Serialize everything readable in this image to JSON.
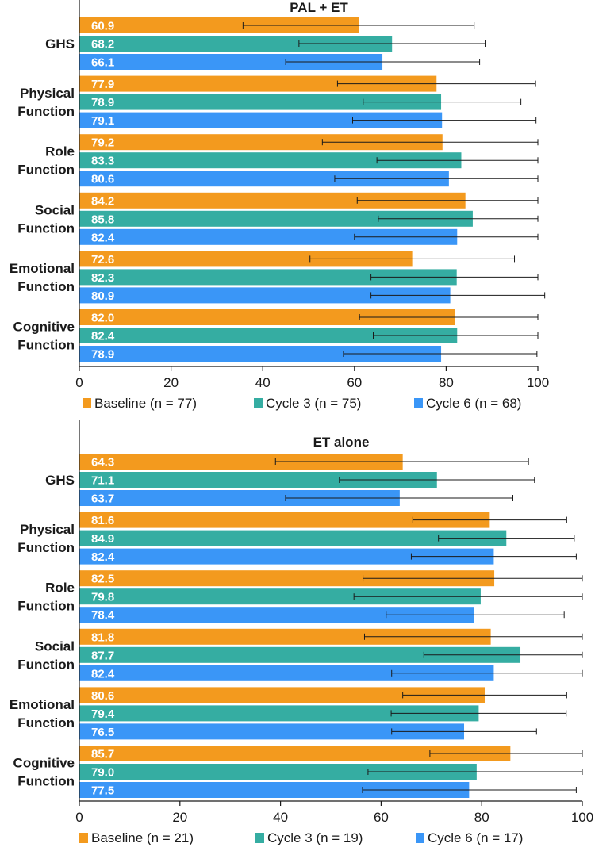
{
  "colors": {
    "baseline": "#F39A1E",
    "cycle3": "#35ADA2",
    "cycle6": "#3A96F7"
  },
  "chart_data": [
    {
      "type": "bar",
      "orientation": "horizontal",
      "title": "PAL + ET",
      "categories": [
        [
          "GHS"
        ],
        [
          "Physical",
          "Function"
        ],
        [
          "Role",
          "Function"
        ],
        [
          "Social",
          "Function"
        ],
        [
          "Emotional",
          "Function"
        ],
        [
          "Cognitive",
          "Function"
        ]
      ],
      "xlim": [
        0,
        100
      ],
      "xticks": [
        0,
        20,
        40,
        60,
        80,
        100
      ],
      "legend_position": "bottom",
      "series": [
        {
          "name": "Baseline (n = 77)",
          "color_key": "baseline",
          "values": [
            60.9,
            77.9,
            79.2,
            84.2,
            72.6,
            82.0
          ],
          "labels": [
            "60.9",
            "77.9",
            "79.2",
            "84.2",
            "72.6",
            "82.0"
          ],
          "err_low": [
            35.7,
            56.3,
            53.0,
            60.6,
            50.3,
            61.1
          ],
          "err_high": [
            86.1,
            99.5,
            100,
            100,
            94.9,
            100
          ]
        },
        {
          "name": "Cycle 3 (n = 75)",
          "color_key": "cycle3",
          "values": [
            68.2,
            78.9,
            83.3,
            85.8,
            82.3,
            82.4
          ],
          "labels": [
            "68.2",
            "78.9",
            "83.3",
            "85.8",
            "82.3",
            "82.4"
          ],
          "err_low": [
            47.9,
            61.9,
            64.9,
            65.2,
            63.6,
            64.1
          ],
          "err_high": [
            88.5,
            96.3,
            100,
            100,
            100,
            100
          ]
        },
        {
          "name": "Cycle 6 (n = 68)",
          "color_key": "cycle6",
          "values": [
            66.1,
            79.1,
            80.6,
            82.4,
            80.9,
            78.9
          ],
          "labels": [
            "66.1",
            "79.1",
            "80.6",
            "82.4",
            "80.9",
            "78.9"
          ],
          "err_low": [
            45.0,
            59.6,
            55.7,
            60.0,
            63.6,
            57.6
          ],
          "err_high": [
            87.3,
            99.6,
            100,
            100,
            101.5,
            99.8
          ]
        }
      ]
    },
    {
      "type": "bar",
      "orientation": "horizontal",
      "title": "ET alone",
      "categories": [
        [
          "GHS"
        ],
        [
          "Physical",
          "Function"
        ],
        [
          "Role",
          "Function"
        ],
        [
          "Social",
          "Function"
        ],
        [
          "Emotional",
          "Function"
        ],
        [
          "Cognitive",
          "Function"
        ]
      ],
      "xlim": [
        0,
        100
      ],
      "xticks": [
        0,
        20,
        40,
        60,
        80,
        100
      ],
      "legend_position": "bottom",
      "series": [
        {
          "name": "Baseline (n = 21)",
          "color_key": "baseline",
          "values": [
            64.3,
            81.6,
            82.5,
            81.8,
            80.6,
            85.7
          ],
          "labels": [
            "64.3",
            "81.6",
            "82.5",
            "81.8",
            "80.6",
            "85.7"
          ],
          "err_low": [
            39.0,
            66.3,
            56.4,
            56.7,
            64.3,
            69.7
          ],
          "err_high": [
            89.3,
            96.9,
            100,
            100,
            96.9,
            100
          ]
        },
        {
          "name": "Cycle 3 (n = 19)",
          "color_key": "cycle3",
          "values": [
            71.1,
            84.9,
            79.8,
            87.7,
            79.4,
            79.0
          ],
          "labels": [
            "71.1",
            "84.9",
            "79.8",
            "87.7",
            "79.4",
            "79.0"
          ],
          "err_low": [
            51.7,
            71.4,
            54.6,
            68.5,
            62.0,
            57.4
          ],
          "err_high": [
            90.5,
            98.4,
            100,
            100,
            96.8,
            100
          ]
        },
        {
          "name": "Cycle 6 (n = 17)",
          "color_key": "cycle6",
          "values": [
            63.7,
            82.4,
            78.4,
            82.4,
            76.5,
            77.5
          ],
          "labels": [
            "63.7",
            "82.4",
            "78.4",
            "82.4",
            "76.5",
            "77.5"
          ],
          "err_low": [
            41.0,
            66.0,
            61.0,
            62.1,
            62.1,
            56.3
          ],
          "err_high": [
            86.2,
            98.8,
            96.4,
            100,
            90.9,
            98.8
          ]
        }
      ]
    }
  ]
}
